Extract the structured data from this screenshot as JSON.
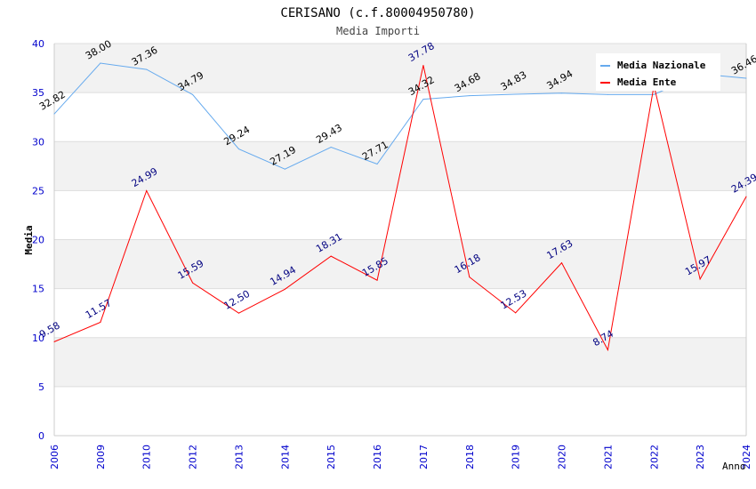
{
  "chart_data": {
    "type": "line",
    "title": "CERISANO (c.f.80004950780)",
    "subtitle": "Media Importi",
    "xlabel": "Anno",
    "ylabel": "Media",
    "ylim": [
      0,
      40
    ],
    "yticks": [
      0,
      5,
      10,
      15,
      20,
      25,
      30,
      35,
      40
    ],
    "categories": [
      "2006",
      "2009",
      "2010",
      "2012",
      "2013",
      "2014",
      "2015",
      "2016",
      "2017",
      "2018",
      "2019",
      "2020",
      "2021",
      "2022",
      "2023",
      "2024"
    ],
    "series": [
      {
        "name": "Media Nazionale",
        "color": "#66aaee",
        "labelColor": "#000000",
        "values": [
          32.82,
          38.0,
          37.36,
          34.79,
          29.24,
          27.19,
          29.43,
          27.71,
          34.32,
          34.68,
          34.83,
          34.94,
          34.8,
          34.8,
          36.9,
          36.46
        ],
        "labels": [
          "32.82",
          "38.00",
          "37.36",
          "34.79",
          "29.24",
          "27.19",
          "29.43",
          "27.71",
          "34.32",
          "34.68",
          "34.83",
          "34.94",
          "",
          "",
          "",
          "36.46"
        ]
      },
      {
        "name": "Media Ente",
        "color": "#ff0000",
        "labelColor": "#000080",
        "values": [
          9.58,
          11.57,
          24.99,
          15.59,
          12.5,
          14.94,
          18.31,
          15.85,
          37.78,
          16.18,
          12.53,
          17.63,
          8.74,
          35.7,
          15.97,
          24.39
        ],
        "labels": [
          "9.58",
          "11.57",
          "24.99",
          "15.59",
          "12.50",
          "14.94",
          "18.31",
          "15.85",
          "37.78",
          "16.18",
          "12.53",
          "17.63",
          "8.74",
          "",
          "15.97",
          "24.39"
        ]
      }
    ],
    "grid": true,
    "legend": "top-right"
  }
}
